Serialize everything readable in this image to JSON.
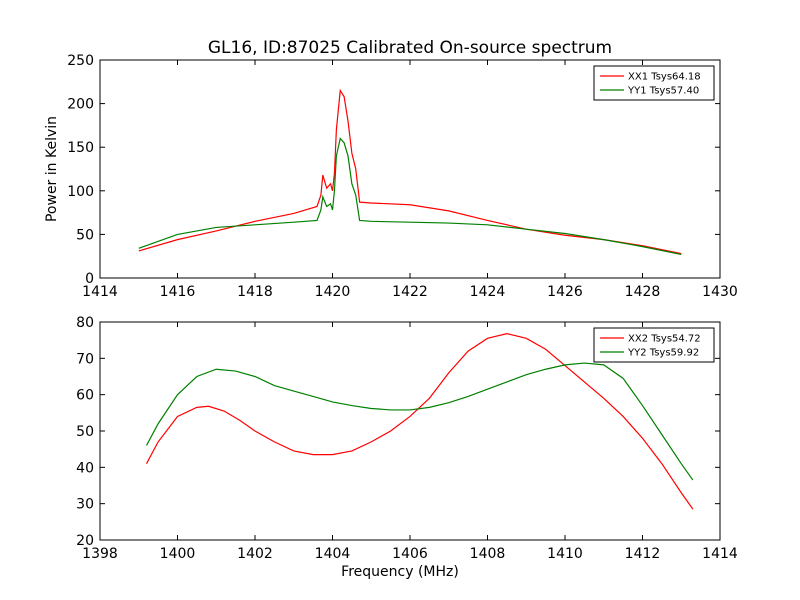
{
  "figure": {
    "title": "GL16, ID:87025 Calibrated On-source spectrum"
  },
  "colors": {
    "red": "#ff0000",
    "green": "#008000"
  },
  "chart_data": [
    {
      "type": "line",
      "title": "GL16, ID:87025 Calibrated On-source spectrum",
      "xlabel": "",
      "ylabel": "Power in Kelvin",
      "xlim": [
        1414,
        1430
      ],
      "ylim": [
        0,
        250
      ],
      "xticks": [
        1414,
        1416,
        1418,
        1420,
        1422,
        1424,
        1426,
        1428,
        1430
      ],
      "yticks": [
        0,
        50,
        100,
        150,
        200,
        250
      ],
      "legend_position": "top-right",
      "grid": false,
      "series": [
        {
          "name": "XX1 Tsys64.18",
          "color": "#ff0000",
          "x": [
            1415.0,
            1416.0,
            1417.0,
            1418.0,
            1419.0,
            1419.6,
            1419.7,
            1419.75,
            1419.85,
            1419.95,
            1420.0,
            1420.05,
            1420.1,
            1420.2,
            1420.3,
            1420.4,
            1420.5,
            1420.6,
            1420.7,
            1421.0,
            1422.0,
            1423.0,
            1424.0,
            1425.0,
            1426.0,
            1427.0,
            1428.0,
            1429.0
          ],
          "y": [
            31,
            44,
            54,
            65,
            74,
            82,
            95,
            118,
            103,
            108,
            100,
            120,
            170,
            215,
            208,
            180,
            143,
            125,
            87,
            86,
            84,
            77,
            66,
            56,
            49,
            44,
            37,
            28
          ]
        },
        {
          "name": "YY1 Tsys57.40",
          "color": "#008000",
          "x": [
            1415.0,
            1416.0,
            1417.0,
            1418.0,
            1419.0,
            1419.6,
            1419.7,
            1419.75,
            1419.85,
            1419.95,
            1420.0,
            1420.05,
            1420.1,
            1420.2,
            1420.3,
            1420.4,
            1420.5,
            1420.6,
            1420.7,
            1421.0,
            1422.0,
            1423.0,
            1424.0,
            1425.0,
            1426.0,
            1427.0,
            1428.0,
            1429.0
          ],
          "y": [
            34,
            50,
            58,
            61,
            64,
            66,
            78,
            93,
            82,
            85,
            78,
            100,
            140,
            160,
            155,
            140,
            108,
            95,
            66,
            65,
            64,
            63,
            61,
            56,
            51,
            44,
            36,
            27
          ]
        }
      ]
    },
    {
      "type": "line",
      "title": "",
      "xlabel": "Frequency (MHz)",
      "ylabel": "",
      "xlim": [
        1398,
        1414
      ],
      "ylim": [
        20,
        80
      ],
      "xticks": [
        1398,
        1400,
        1402,
        1404,
        1406,
        1408,
        1410,
        1412,
        1414
      ],
      "yticks": [
        20,
        30,
        40,
        50,
        60,
        70,
        80
      ],
      "legend_position": "top-right",
      "grid": false,
      "series": [
        {
          "name": "XX2 Tsys54.72",
          "color": "#ff0000",
          "x": [
            1399.2,
            1399.5,
            1400.0,
            1400.5,
            1400.8,
            1401.2,
            1401.6,
            1402.0,
            1402.5,
            1403.0,
            1403.5,
            1404.0,
            1404.5,
            1405.0,
            1405.5,
            1406.0,
            1406.5,
            1407.0,
            1407.5,
            1408.0,
            1408.5,
            1409.0,
            1409.5,
            1410.0,
            1410.5,
            1411.0,
            1411.5,
            1412.0,
            1412.5,
            1413.0,
            1413.3
          ],
          "y": [
            41,
            47,
            54,
            56.5,
            56.8,
            55.5,
            53,
            50,
            47,
            44.5,
            43.5,
            43.5,
            44.5,
            47,
            50,
            54,
            59,
            66,
            72,
            75.5,
            76.8,
            75.5,
            72.5,
            68,
            63.5,
            59,
            54,
            48,
            41,
            33,
            28.5
          ]
        },
        {
          "name": "YY2 Tsys59.92",
          "color": "#008000",
          "x": [
            1399.2,
            1399.5,
            1400.0,
            1400.5,
            1401.0,
            1401.5,
            1402.0,
            1402.5,
            1403.0,
            1403.5,
            1404.0,
            1404.5,
            1405.0,
            1405.5,
            1406.0,
            1406.5,
            1407.0,
            1407.5,
            1408.0,
            1408.5,
            1409.0,
            1409.5,
            1410.0,
            1410.5,
            1411.0,
            1411.5,
            1412.0,
            1412.5,
            1413.0,
            1413.3
          ],
          "y": [
            46,
            52,
            60,
            65,
            67,
            66.5,
            65,
            62.5,
            61,
            59.5,
            58,
            57,
            56.2,
            55.8,
            55.8,
            56.5,
            57.8,
            59.5,
            61.5,
            63.5,
            65.5,
            67,
            68.2,
            68.7,
            68.2,
            64.5,
            57,
            49,
            41,
            36.5
          ]
        }
      ]
    }
  ]
}
